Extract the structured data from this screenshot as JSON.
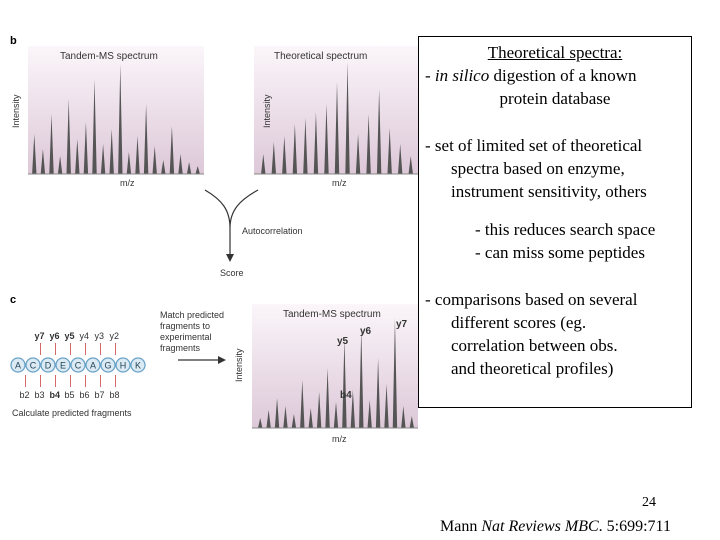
{
  "figure": {
    "panel_b_label": "b",
    "panel_c_label": "c",
    "tandem_title": "Tandem-MS spectrum",
    "theoretical_title": "Theoretical spectrum",
    "intensity_label": "Intensity",
    "mz_label": "m/z",
    "autocorrelation_label": "Autocorrelation",
    "score_label": "Score",
    "match_text": [
      "Match predicted",
      "fragments to",
      "experimental",
      "fragments"
    ],
    "calc_label": "Calculate predicted fragments",
    "peptide": [
      "A",
      "C",
      "D",
      "E",
      "C",
      "A",
      "G",
      "H",
      "K"
    ],
    "y_ions": [
      "y7",
      "y6",
      "y5",
      "y4",
      "y3",
      "y2"
    ],
    "b_ions": [
      "b2",
      "b3",
      "b4",
      "b5",
      "b6",
      "b7",
      "b8"
    ],
    "peak_labels": {
      "y6": "y6",
      "y7": "y7",
      "y5": "y5",
      "b4": "b4"
    }
  },
  "callout": {
    "title": "Theoretical spectra:",
    "line1_prefix": "- ",
    "line1_italic": "in silico",
    "line1_rest": " digestion of a known",
    "line2": "protein database",
    "bullet2_l1": "- set of limited set of theoretical",
    "bullet2_l2": "spectra based on enzyme,",
    "bullet2_l3": "instrument sensitivity, others",
    "sub1": "- this reduces search space",
    "sub2": "- can miss some peptides",
    "bullet3_l1": "- comparisons based on several",
    "bullet3_l2": "different scores (eg.",
    "bullet3_l3": "correlation between obs.",
    "bullet3_l4": "and theoretical profiles)"
  },
  "footer": {
    "page_number": "24",
    "citation_author": "Mann ",
    "citation_journal": "Nat Reviews MBC",
    "citation_rest": ". 5:699:711"
  },
  "colors": {
    "panel_bg": "#e9dce6",
    "peak": "#555555",
    "bead": "#6aa3c8"
  }
}
